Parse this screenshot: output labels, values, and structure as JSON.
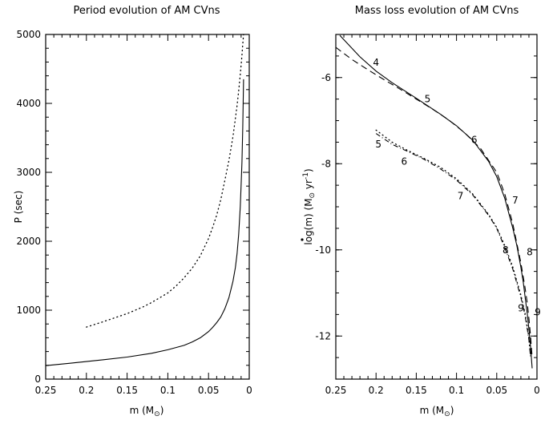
{
  "chart_data": [
    {
      "type": "line",
      "title": "Period evolution of AM CVns",
      "xlabel": "m",
      "xlabel_unit": "M",
      "xlabel_sub": "⊙",
      "ylabel": "P (sec)",
      "xlim": [
        0.25,
        0
      ],
      "ylim": [
        0,
        5000
      ],
      "x_ticks": [
        "0.25",
        "0.2",
        "0.15",
        "0.1",
        "0.05",
        "0"
      ],
      "y_ticks": [
        "0",
        "1000",
        "2000",
        "3000",
        "4000",
        "5000"
      ],
      "series": [
        {
          "name": "solid",
          "style": "solid",
          "x": [
            0.25,
            0.22,
            0.2,
            0.18,
            0.15,
            0.12,
            0.1,
            0.08,
            0.07,
            0.06,
            0.05,
            0.045,
            0.04,
            0.035,
            0.03,
            0.025,
            0.02,
            0.017,
            0.015,
            0.013,
            0.011,
            0.01,
            0.009,
            0.008,
            0.007
          ],
          "y": [
            195,
            230,
            255,
            280,
            320,
            375,
            425,
            490,
            540,
            600,
            690,
            750,
            820,
            900,
            1020,
            1180,
            1420,
            1620,
            1820,
            2100,
            2500,
            2800,
            3150,
            3650,
            4350
          ]
        },
        {
          "name": "dotted",
          "style": "dotted",
          "x": [
            0.2,
            0.18,
            0.15,
            0.13,
            0.12,
            0.1,
            0.09,
            0.08,
            0.07,
            0.06,
            0.05,
            0.045,
            0.04,
            0.035,
            0.03,
            0.025,
            0.02,
            0.017,
            0.015,
            0.013,
            0.011,
            0.01,
            0.009,
            0.008,
            0.007
          ],
          "y": [
            755,
            830,
            950,
            1050,
            1110,
            1250,
            1350,
            1470,
            1610,
            1790,
            2040,
            2200,
            2380,
            2600,
            2880,
            3170,
            3520,
            3780,
            3970,
            4180,
            4420,
            4550,
            4700,
            4860,
            5000
          ]
        }
      ]
    },
    {
      "type": "line",
      "title": "Mass loss evolution of AM CVns",
      "xlabel": "m",
      "xlabel_unit": "M",
      "xlabel_sub": "⊙",
      "ylabel": "log(m) (M⊙ yr⁻¹)",
      "ylabel_parts": {
        "pre": "log(m) (M",
        "sub": "⊙",
        "mid": " yr",
        "sup": "-1",
        "post": ")"
      },
      "xlim": [
        0.25,
        0
      ],
      "ylim": [
        -13,
        -5
      ],
      "x_ticks": [
        "0.25",
        "0.2",
        "0.15",
        "0.1",
        "0.05",
        "0"
      ],
      "y_ticks": [
        "-6",
        "-8",
        "-10",
        "-12"
      ],
      "series": [
        {
          "name": "solid",
          "style": "solid",
          "x": [
            0.245,
            0.22,
            0.2,
            0.18,
            0.15,
            0.12,
            0.1,
            0.08,
            0.06,
            0.05,
            0.04,
            0.03,
            0.025,
            0.02,
            0.017,
            0.015,
            0.012,
            0.01,
            0.008,
            0.006
          ],
          "y": [
            -5.02,
            -5.52,
            -5.85,
            -6.12,
            -6.48,
            -6.85,
            -7.12,
            -7.45,
            -7.95,
            -8.3,
            -8.8,
            -9.5,
            -9.9,
            -10.4,
            -10.75,
            -11.05,
            -11.5,
            -11.85,
            -12.25,
            -12.75
          ]
        },
        {
          "name": "dashed",
          "style": "dashed",
          "x": [
            0.25,
            0.23,
            0.21,
            0.19,
            0.17,
            0.15,
            0.13,
            0.11,
            0.09,
            0.07,
            0.05,
            0.04,
            0.03,
            0.02,
            0.015,
            0.012,
            0.01,
            0.008,
            0.006
          ],
          "y": [
            -5.3,
            -5.58,
            -5.82,
            -6.05,
            -6.27,
            -6.5,
            -6.73,
            -6.98,
            -7.28,
            -7.65,
            -8.2,
            -8.7,
            -9.4,
            -10.3,
            -10.85,
            -11.25,
            -11.6,
            -12.0,
            -12.5
          ]
        },
        {
          "name": "dash-dot",
          "style": "dashdot",
          "x": [
            0.2,
            0.18,
            0.16,
            0.14,
            0.12,
            0.1,
            0.08,
            0.06,
            0.05,
            0.04,
            0.03,
            0.02,
            0.015,
            0.012,
            0.01,
            0.008
          ],
          "y": [
            -7.3,
            -7.55,
            -7.72,
            -7.9,
            -8.12,
            -8.38,
            -8.72,
            -9.2,
            -9.5,
            -9.95,
            -10.45,
            -11.1,
            -11.5,
            -11.85,
            -12.1,
            -12.5
          ]
        },
        {
          "name": "dotted",
          "style": "dotted",
          "x": [
            0.2,
            0.18,
            0.16,
            0.14,
            0.12,
            0.1,
            0.08,
            0.06,
            0.05,
            0.04,
            0.03,
            0.02,
            0.015,
            0.012,
            0.01,
            0.008
          ],
          "y": [
            -7.22,
            -7.5,
            -7.7,
            -7.88,
            -8.08,
            -8.35,
            -8.7,
            -9.18,
            -9.48,
            -9.9,
            -10.4,
            -11.05,
            -11.45,
            -11.8,
            -12.05,
            -12.45
          ]
        }
      ],
      "annotations": [
        {
          "text": "4",
          "x": 0.2,
          "y": -5.65
        },
        {
          "text": "5",
          "x": 0.136,
          "y": -6.5
        },
        {
          "text": "6",
          "x": 0.078,
          "y": -7.45
        },
        {
          "text": "7",
          "x": 0.027,
          "y": -8.85
        },
        {
          "text": "8",
          "x": 0.009,
          "y": -10.05
        },
        {
          "text": "9",
          "x": 0.02,
          "y": -11.35
        },
        {
          "text": "9",
          "x": -0.001,
          "y": -11.45
        },
        {
          "text": "5",
          "x": 0.197,
          "y": -7.55
        },
        {
          "text": "6",
          "x": 0.165,
          "y": -7.95
        },
        {
          "text": "7",
          "x": 0.095,
          "y": -8.75
        },
        {
          "text": "8",
          "x": 0.039,
          "y": -10.0
        }
      ]
    }
  ]
}
